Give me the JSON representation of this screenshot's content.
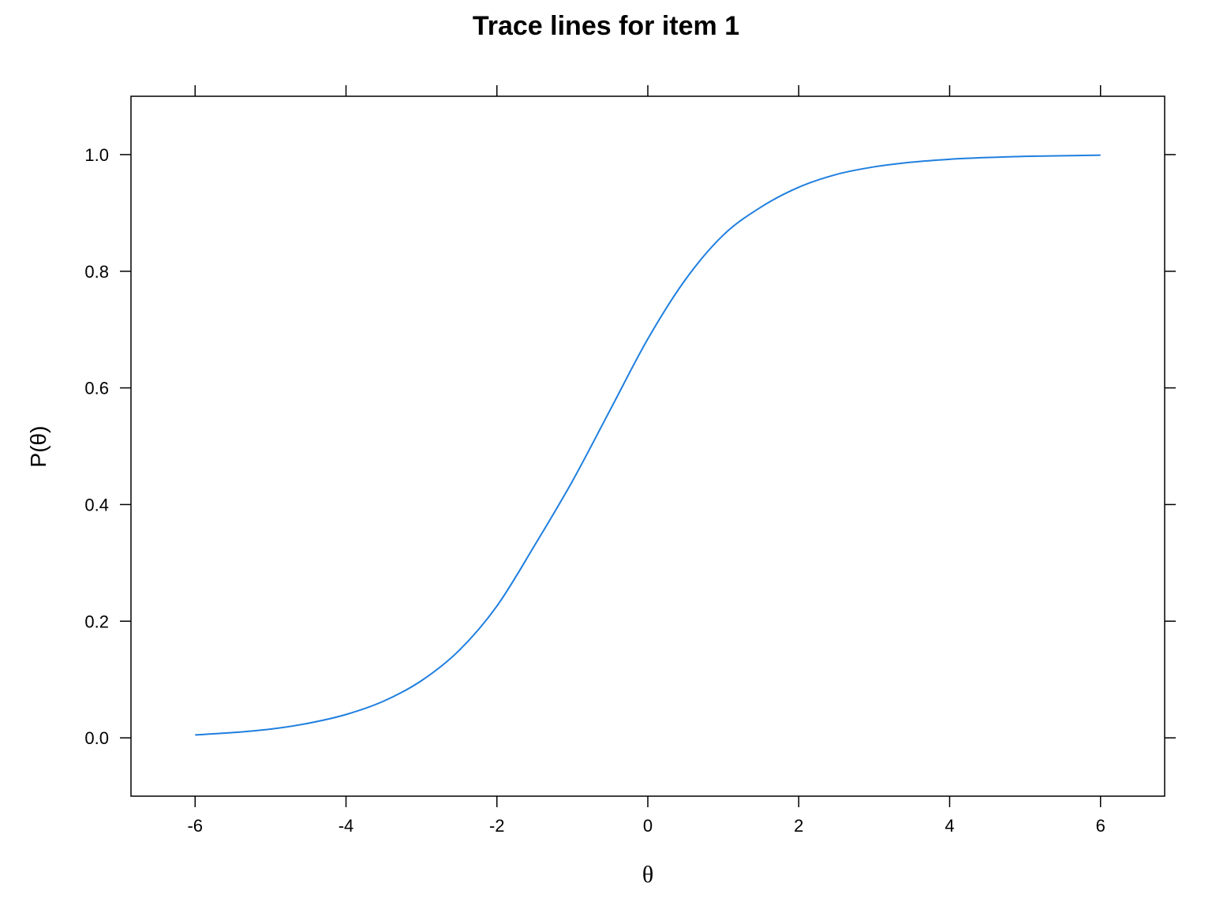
{
  "chart_data": {
    "type": "line",
    "title": "Trace lines for item 1",
    "xlabel": "θ",
    "ylabel": "P(θ)",
    "xlim": [
      -6.85,
      6.85
    ],
    "ylim": [
      -0.1,
      1.1
    ],
    "x_ticks": [
      -6,
      -4,
      -2,
      0,
      2,
      4,
      6
    ],
    "x_tick_labels": [
      "-6",
      "-4",
      "-2",
      "0",
      "2",
      "4",
      "6"
    ],
    "y_ticks": [
      0.0,
      0.2,
      0.4,
      0.6,
      0.8,
      1.0
    ],
    "y_tick_labels": [
      "0.0",
      "0.2",
      "0.4",
      "0.6",
      "0.8",
      "1.0"
    ],
    "grid": false,
    "legend": "none",
    "series": [
      {
        "color": "#1f7fdf",
        "x": [
          -6,
          -5.5,
          -5,
          -4.5,
          -4,
          -3.5,
          -3,
          -2.5,
          -2,
          -1.5,
          -1,
          -0.5,
          0,
          0.5,
          1,
          1.5,
          2,
          2.5,
          3,
          3.5,
          4,
          4.5,
          5,
          5.5,
          6
        ],
        "values": [
          0.005,
          0.009,
          0.015,
          0.025,
          0.04,
          0.063,
          0.098,
          0.15,
          0.226,
          0.33,
          0.44,
          0.562,
          0.684,
          0.786,
          0.862,
          0.91,
          0.944,
          0.966,
          0.979,
          0.987,
          0.992,
          0.995,
          0.997,
          0.998,
          0.999
        ]
      }
    ]
  }
}
